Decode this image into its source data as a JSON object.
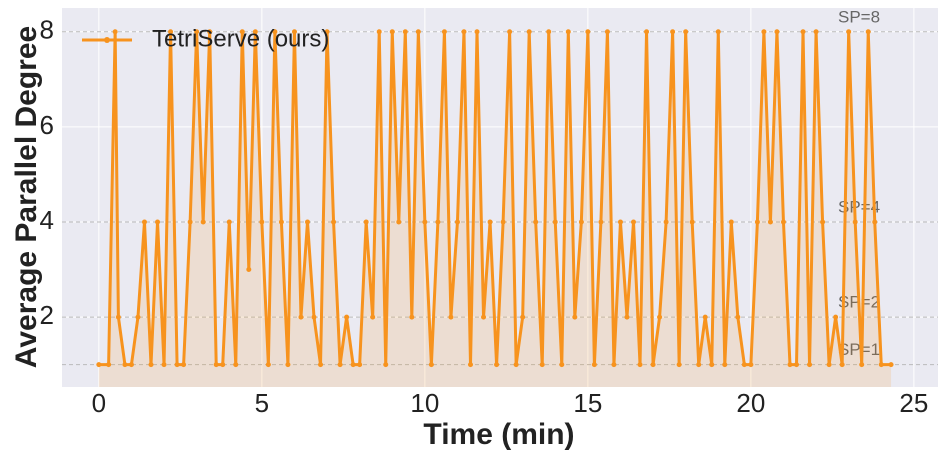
{
  "chart_data": {
    "type": "line",
    "xlabel": "Time (min)",
    "ylabel": "Average Parallel Degree",
    "x": [
      0,
      0.3,
      0.5,
      0.6,
      0.8,
      1.0,
      1.2,
      1.4,
      1.6,
      1.8,
      2.0,
      2.2,
      2.4,
      2.6,
      2.8,
      3.0,
      3.2,
      3.4,
      3.6,
      3.8,
      4.0,
      4.2,
      4.4,
      4.6,
      4.8,
      5.0,
      5.2,
      5.4,
      5.6,
      5.8,
      6.0,
      6.2,
      6.4,
      6.6,
      6.8,
      7.0,
      7.2,
      7.4,
      7.6,
      7.8,
      8.0,
      8.2,
      8.4,
      8.6,
      8.8,
      9.0,
      9.2,
      9.4,
      9.6,
      9.8,
      10.0,
      10.2,
      10.4,
      10.6,
      10.8,
      11.0,
      11.2,
      11.4,
      11.6,
      11.8,
      12.0,
      12.2,
      12.4,
      12.6,
      12.8,
      13.0,
      13.2,
      13.4,
      13.6,
      13.8,
      14.0,
      14.2,
      14.4,
      14.6,
      14.8,
      15.0,
      15.2,
      15.4,
      15.6,
      15.8,
      16.0,
      16.2,
      16.4,
      16.6,
      16.8,
      17.0,
      17.2,
      17.4,
      17.6,
      17.8,
      18.0,
      18.2,
      18.4,
      18.6,
      18.8,
      19.0,
      19.2,
      19.4,
      19.6,
      19.8,
      20.0,
      20.2,
      20.4,
      20.6,
      20.8,
      21.0,
      21.2,
      21.4,
      21.6,
      21.8,
      22.0,
      22.2,
      22.4,
      22.6,
      22.8,
      23.0,
      23.2,
      23.4,
      23.6,
      23.8,
      24.0,
      24.3
    ],
    "series": [
      {
        "name": "TetriServe (ours)",
        "color": "#f7931e",
        "values": [
          1,
          1,
          8,
          2,
          1,
          1,
          2,
          4,
          1,
          4,
          1,
          8,
          1,
          1,
          4,
          8,
          4,
          8,
          1,
          1,
          4,
          1,
          8,
          3,
          8,
          4,
          1,
          8,
          4,
          1,
          8,
          2,
          4,
          2,
          1,
          8,
          4,
          1,
          2,
          1,
          1,
          4,
          2,
          8,
          1,
          8,
          4,
          8,
          2,
          8,
          4,
          1,
          4,
          8,
          2,
          4,
          8,
          1,
          8,
          2,
          4,
          1,
          4,
          8,
          1,
          2,
          8,
          4,
          1,
          8,
          4,
          1,
          8,
          2,
          4,
          8,
          1,
          4,
          8,
          1,
          4,
          2,
          4,
          1,
          8,
          1,
          2,
          4,
          8,
          1,
          8,
          4,
          1,
          2,
          1,
          8,
          1,
          4,
          2,
          1,
          1,
          4,
          8,
          4,
          8,
          4,
          1,
          1,
          8,
          1,
          8,
          4,
          1,
          2,
          1,
          8,
          4,
          1,
          8,
          4,
          1,
          1
        ]
      }
    ],
    "reference_lines": [
      {
        "value": 8,
        "label": "SP=8"
      },
      {
        "value": 4,
        "label": "SP=4"
      },
      {
        "value": 2,
        "label": "SP=2"
      },
      {
        "value": 1,
        "label": "SP=1"
      }
    ],
    "xlim": [
      -1.13,
      25.74
    ],
    "ylim": [
      0.53,
      8.5
    ],
    "xticks": [
      0,
      5,
      10,
      15,
      20,
      25
    ],
    "yticks": [
      2,
      4,
      6,
      8
    ],
    "grid": true,
    "legend": "upper left"
  }
}
